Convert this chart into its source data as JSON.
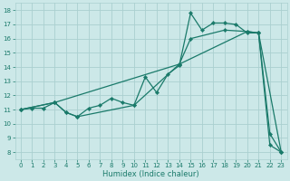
{
  "xlabel": "Humidex (Indice chaleur)",
  "bg_color": "#cce8e8",
  "grid_color": "#aad0d0",
  "line_color": "#1a7a6a",
  "xlim": [
    -0.5,
    23.5
  ],
  "ylim": [
    7.5,
    18.5
  ],
  "line1_x": [
    0,
    1,
    2,
    3,
    4,
    5,
    6,
    7,
    8,
    9,
    10,
    11,
    12,
    13,
    14,
    15,
    16,
    17,
    18,
    19,
    20,
    21,
    22,
    23
  ],
  "line1_y": [
    11.0,
    11.1,
    11.1,
    11.5,
    10.8,
    10.5,
    11.1,
    11.3,
    11.8,
    11.5,
    11.3,
    13.3,
    12.2,
    13.5,
    14.1,
    17.8,
    16.6,
    17.1,
    17.1,
    17.0,
    16.4,
    16.4,
    9.3,
    8.0
  ],
  "line2_x": [
    0,
    3,
    14,
    20,
    21,
    23
  ],
  "line2_y": [
    11.0,
    11.5,
    14.2,
    16.5,
    16.4,
    8.0
  ],
  "line3_x": [
    0,
    3,
    4,
    5,
    10,
    14,
    15,
    18,
    20,
    21,
    22,
    23
  ],
  "line3_y": [
    11.0,
    11.5,
    10.8,
    10.5,
    11.3,
    14.2,
    16.0,
    16.6,
    16.5,
    16.4,
    8.5,
    8.0
  ],
  "marker": "D",
  "markersize": 2.2,
  "linewidth": 0.9
}
